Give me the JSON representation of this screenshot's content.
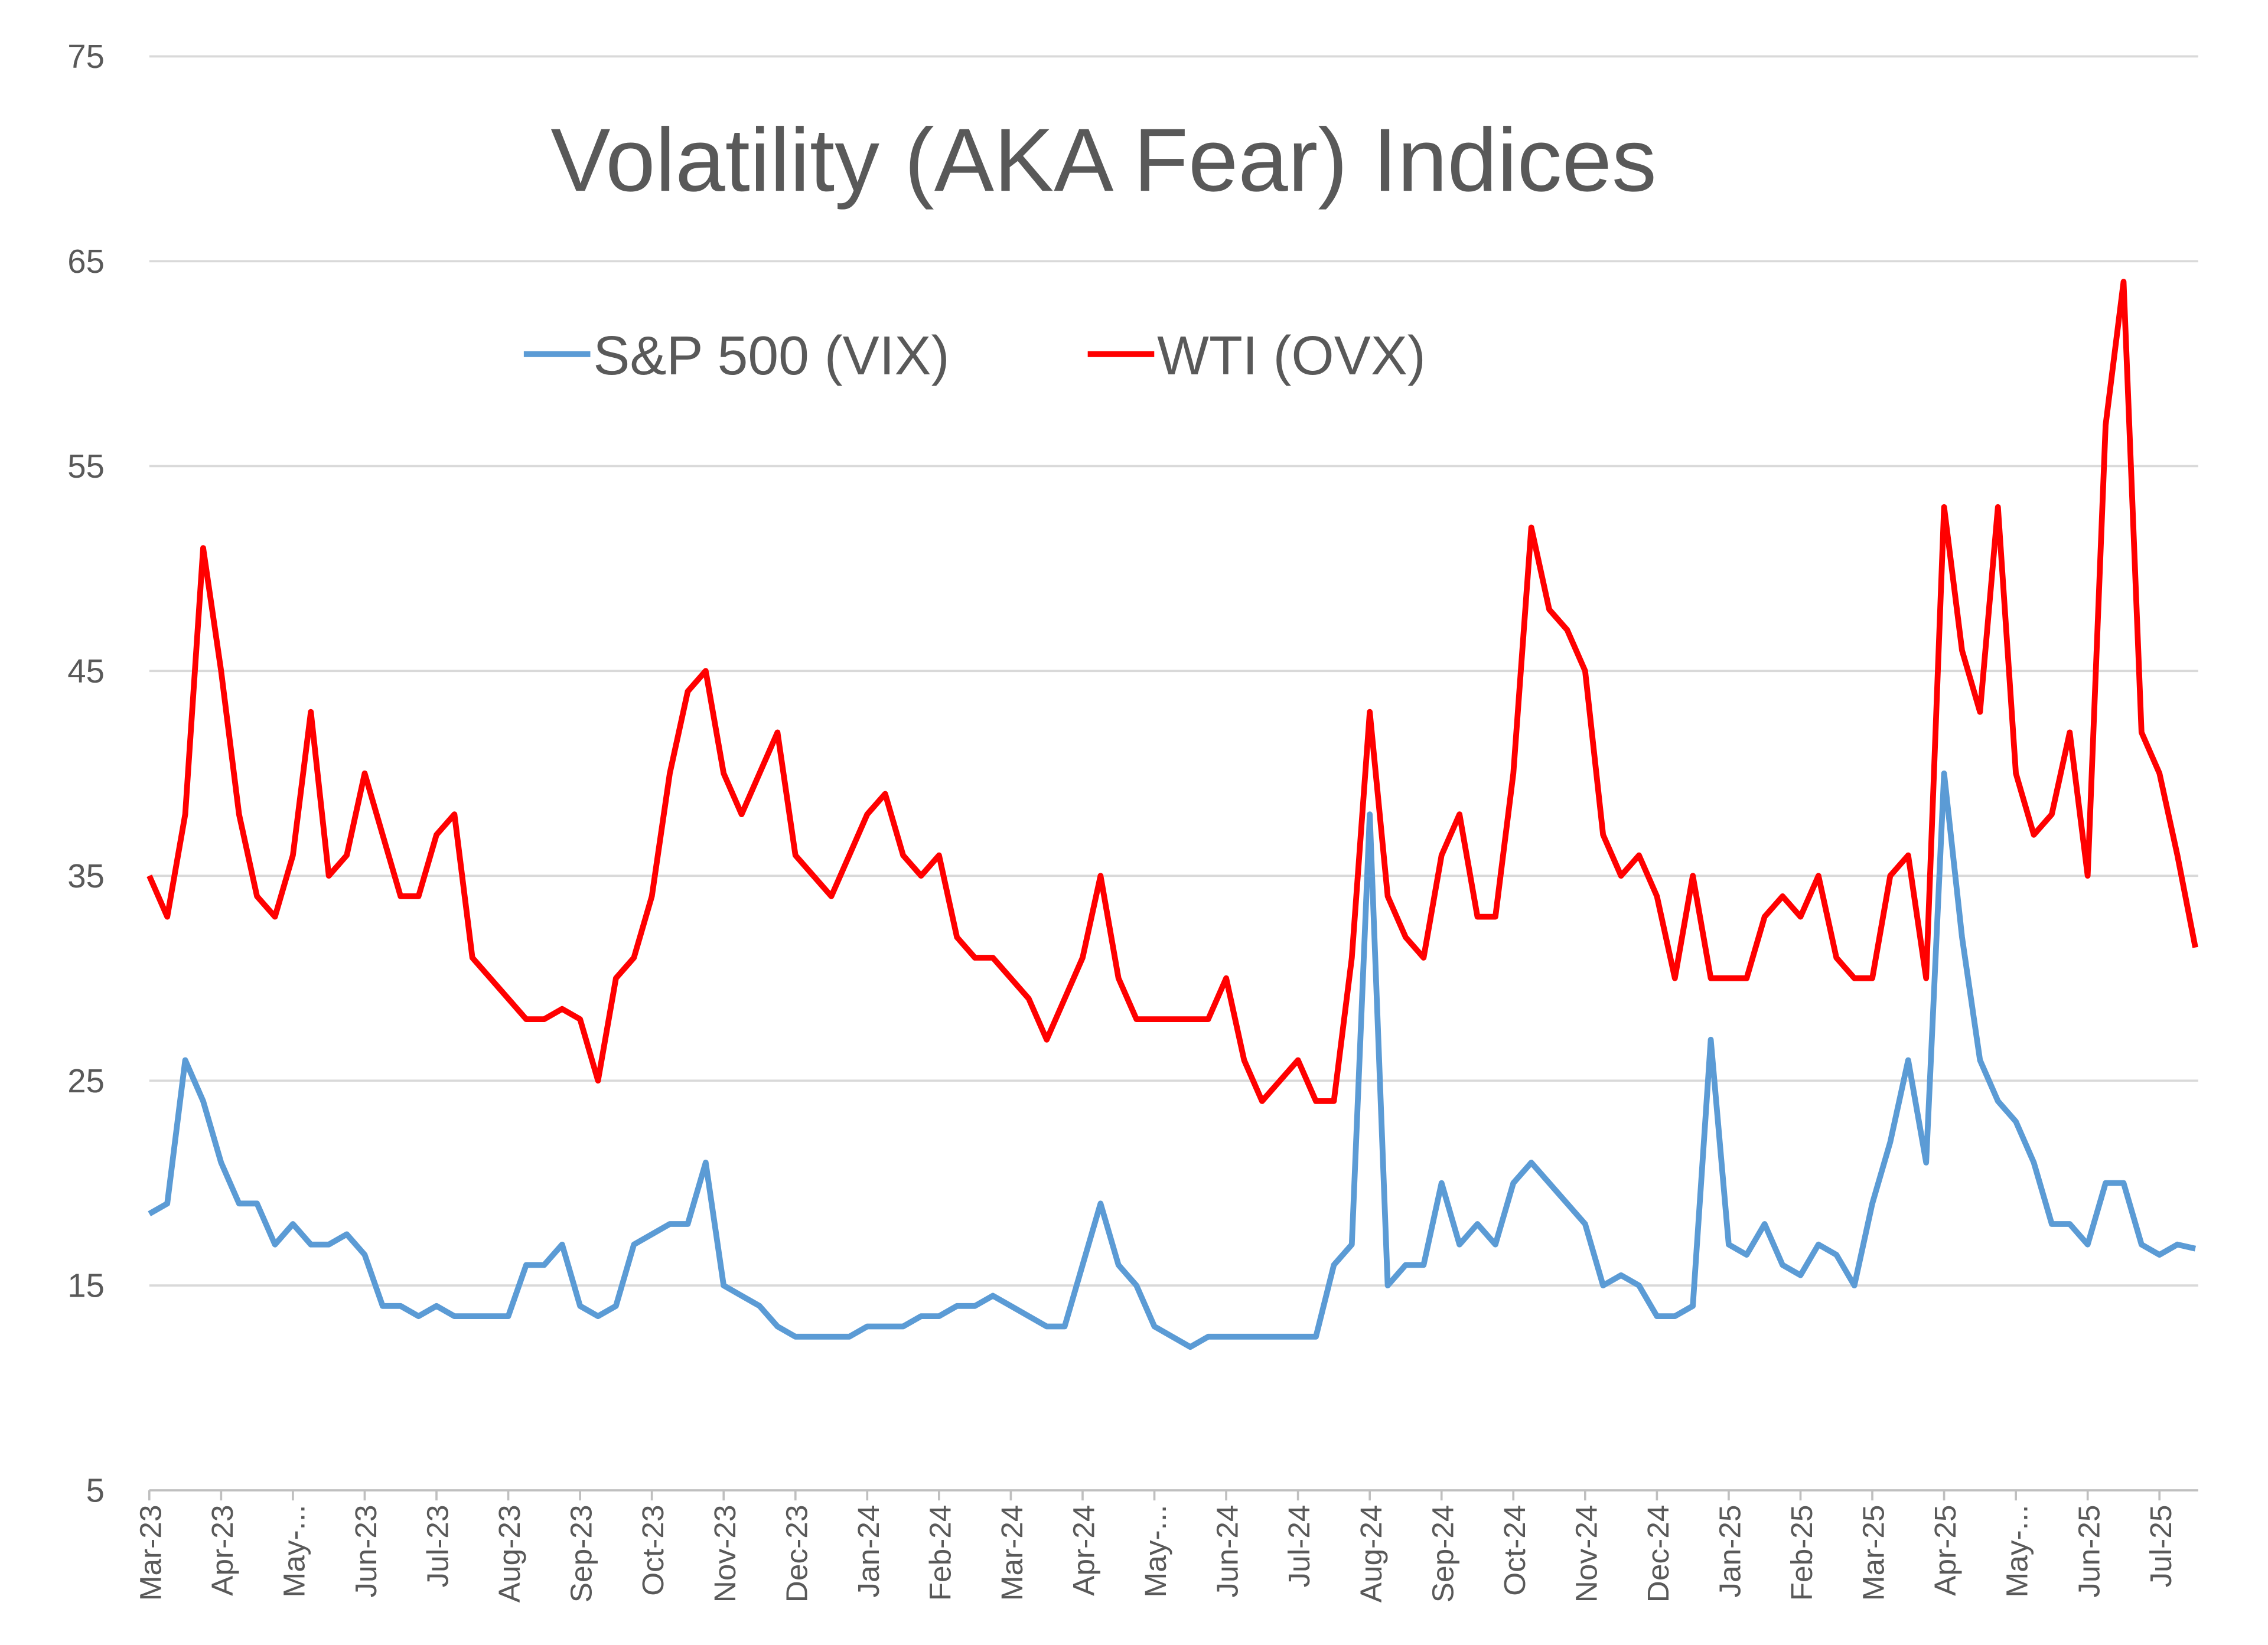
{
  "chart_data": {
    "type": "line",
    "title": "Volatility (AKA Fear) Indices",
    "categories": [
      "Mar-23",
      null,
      null,
      null,
      "Apr-23",
      null,
      null,
      null,
      "May-...",
      null,
      null,
      null,
      "Jun-23",
      null,
      null,
      null,
      "Jul-23",
      null,
      null,
      null,
      "Aug-23",
      null,
      null,
      null,
      "Sep-23",
      null,
      null,
      null,
      "Oct-23",
      null,
      null,
      null,
      "Nov-23",
      null,
      null,
      null,
      "Dec-23",
      null,
      null,
      null,
      "Jan-24",
      null,
      null,
      null,
      "Feb-24",
      null,
      null,
      null,
      "Mar-24",
      null,
      null,
      null,
      "Apr-24",
      null,
      null,
      null,
      "May-...",
      null,
      null,
      null,
      "Jun-24",
      null,
      null,
      null,
      "Jul-24",
      null,
      null,
      null,
      "Aug-24",
      null,
      null,
      null,
      "Sep-24",
      null,
      null,
      null,
      "Oct-24",
      null,
      null,
      null,
      "Nov-24",
      null,
      null,
      null,
      "Dec-24",
      null,
      null,
      null,
      "Jan-25",
      null,
      null,
      null,
      "Feb-25",
      null,
      null,
      null,
      "Mar-25",
      null,
      null,
      null,
      "Apr-25",
      null,
      null,
      null,
      "May-...",
      null,
      null,
      null,
      "Jun-25",
      null,
      null,
      null,
      "Jul-25",
      null,
      null
    ],
    "series": [
      {
        "name": "S&P 500 (VIX)",
        "color": "#5b9bd5",
        "values": [
          18.5,
          19,
          26,
          24,
          21,
          19,
          19,
          17,
          18,
          17,
          17,
          17.5,
          16.5,
          14,
          14,
          13.5,
          14,
          13.5,
          13.5,
          13.5,
          13.5,
          16,
          16,
          17,
          14,
          13.5,
          14,
          17,
          17.5,
          18,
          18,
          21,
          15,
          14.5,
          14,
          13,
          12.5,
          12.5,
          12.5,
          12.5,
          13,
          13,
          13,
          13.5,
          13.5,
          14,
          14,
          14.5,
          14,
          13.5,
          13,
          13,
          16,
          19,
          16,
          15,
          13,
          12.5,
          12,
          12.5,
          12.5,
          12.5,
          12.5,
          12.5,
          12.5,
          12.5,
          16,
          17,
          38,
          15,
          16,
          16,
          20,
          17,
          18,
          17,
          20,
          21,
          20,
          19,
          18,
          15,
          15.5,
          15,
          13.5,
          13.5,
          14,
          27,
          17,
          16.5,
          18,
          16,
          15.5,
          17,
          16.5,
          15,
          19,
          22,
          26,
          21,
          40,
          32,
          26,
          24,
          23,
          21,
          18,
          18,
          17,
          20,
          20,
          17,
          16.5,
          17,
          16.8
        ]
      },
      {
        "name": "WTI (OVX)",
        "color": "#ff0000",
        "values": [
          35,
          33,
          38,
          51,
          45,
          38,
          34,
          33,
          36,
          43,
          35,
          36,
          40,
          37,
          34,
          34,
          37,
          38,
          31,
          30,
          29,
          28,
          28,
          28.5,
          28,
          25,
          30,
          31,
          34,
          40,
          44,
          45,
          40,
          38,
          40,
          42,
          36,
          35,
          34,
          36,
          38,
          39,
          36,
          35,
          36,
          32,
          31,
          31,
          30,
          29,
          27,
          29,
          31,
          35,
          30,
          28,
          28,
          28,
          28,
          28,
          30,
          26,
          24,
          25,
          26,
          24,
          24,
          31,
          43,
          34,
          32,
          31,
          36,
          38,
          33,
          33,
          40,
          52,
          48,
          47,
          45,
          37,
          35,
          36,
          34,
          30,
          35,
          30,
          30,
          30,
          33,
          34,
          33,
          35,
          31,
          30,
          30,
          35,
          36,
          30,
          53,
          46,
          43,
          53,
          40,
          37,
          38,
          42,
          35,
          57,
          64,
          42,
          40,
          36,
          31.5
        ]
      }
    ],
    "ylim": [
      5,
      75
    ],
    "yticks": [
      5,
      15,
      25,
      35,
      45,
      55,
      65,
      75
    ],
    "grid": true,
    "legend": "top"
  }
}
